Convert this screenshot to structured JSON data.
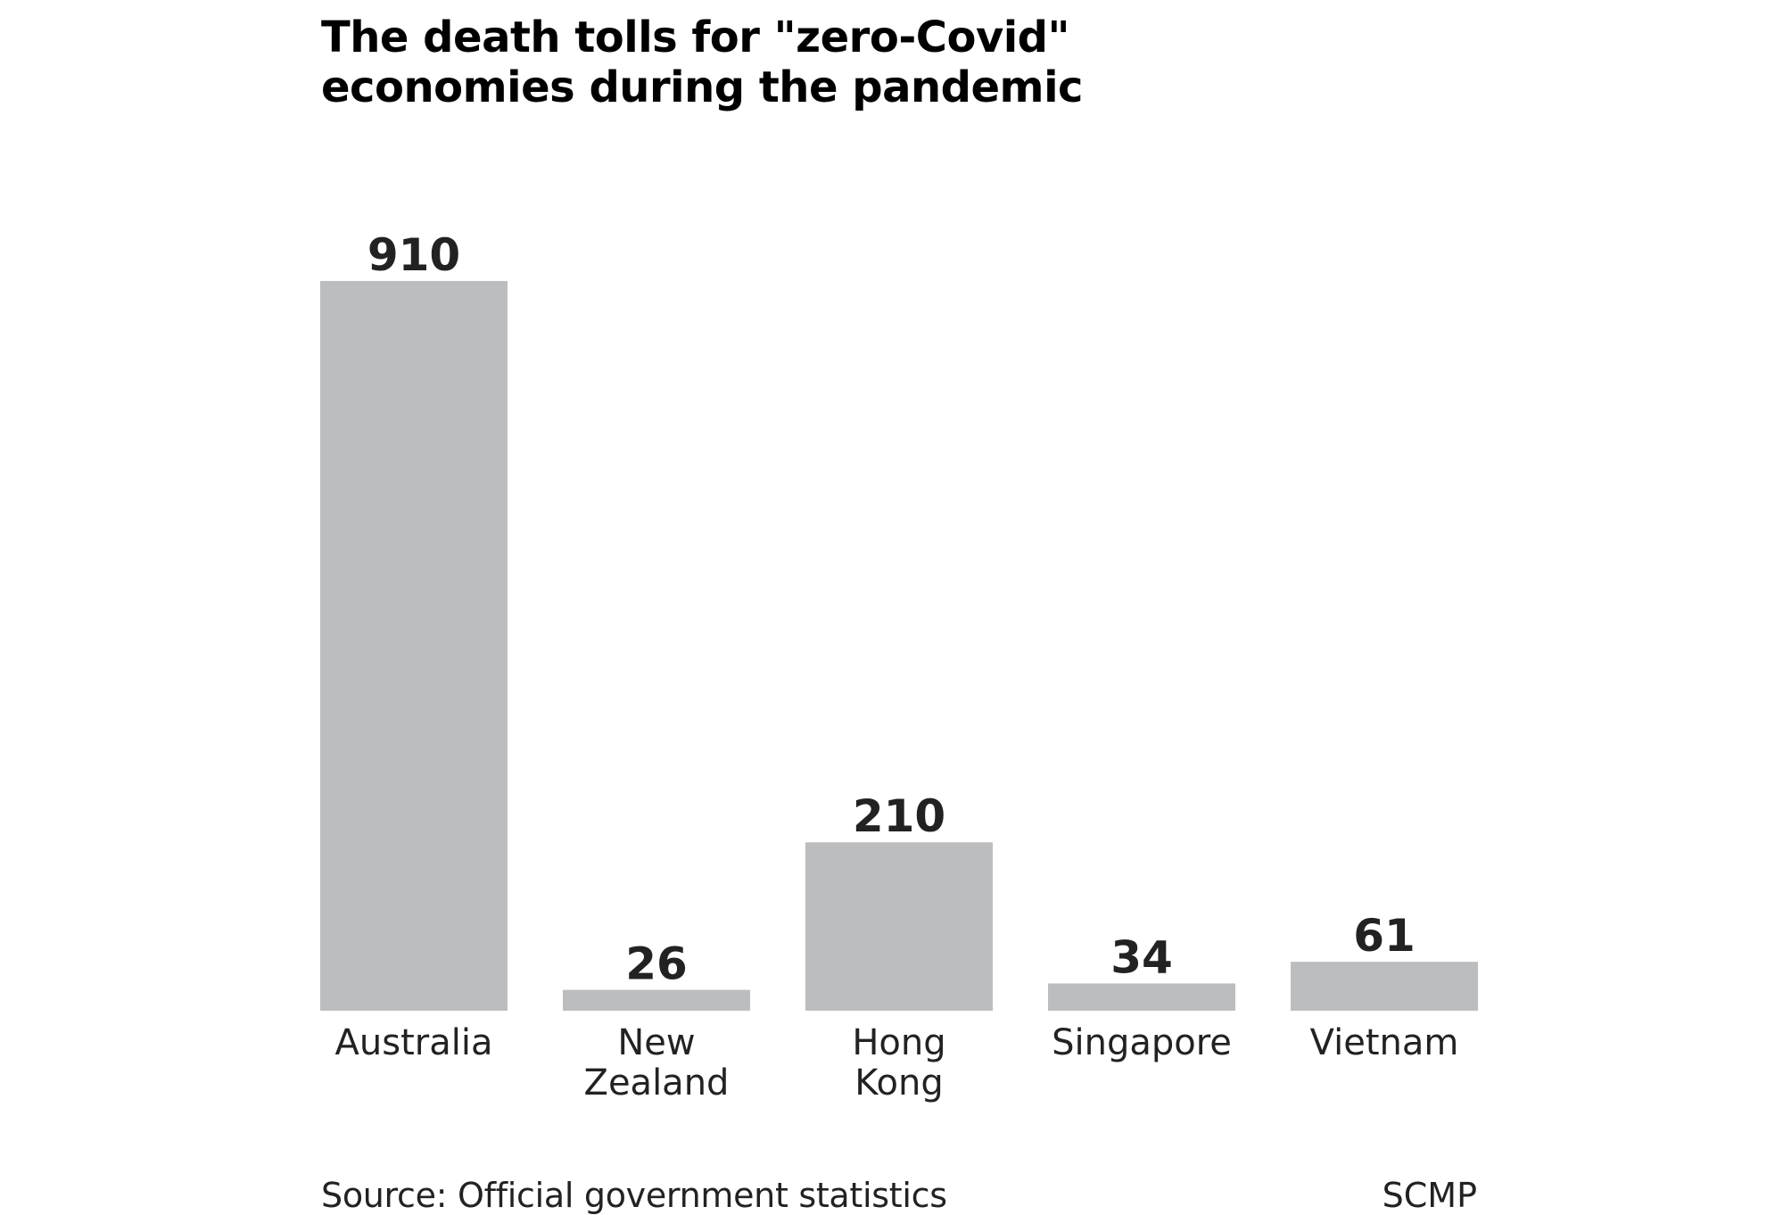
{
  "chart_data": {
    "type": "bar",
    "title": "The death tolls for \"zero-Covid\" economies during the pandemic",
    "categories": [
      [
        "Australia"
      ],
      [
        "New",
        "Zealand"
      ],
      [
        "Hong",
        "Kong"
      ],
      [
        "Singapore"
      ],
      [
        "Vietnam"
      ]
    ],
    "values": [
      910,
      26,
      210,
      34,
      61
    ],
    "value_labels": [
      "910",
      "26",
      "210",
      "34",
      "61"
    ],
    "ylim": [
      0,
      910
    ],
    "grid": false,
    "bar_color": "#bcbdbf",
    "source": "Source: Official government statistics",
    "credit": "SCMP"
  }
}
